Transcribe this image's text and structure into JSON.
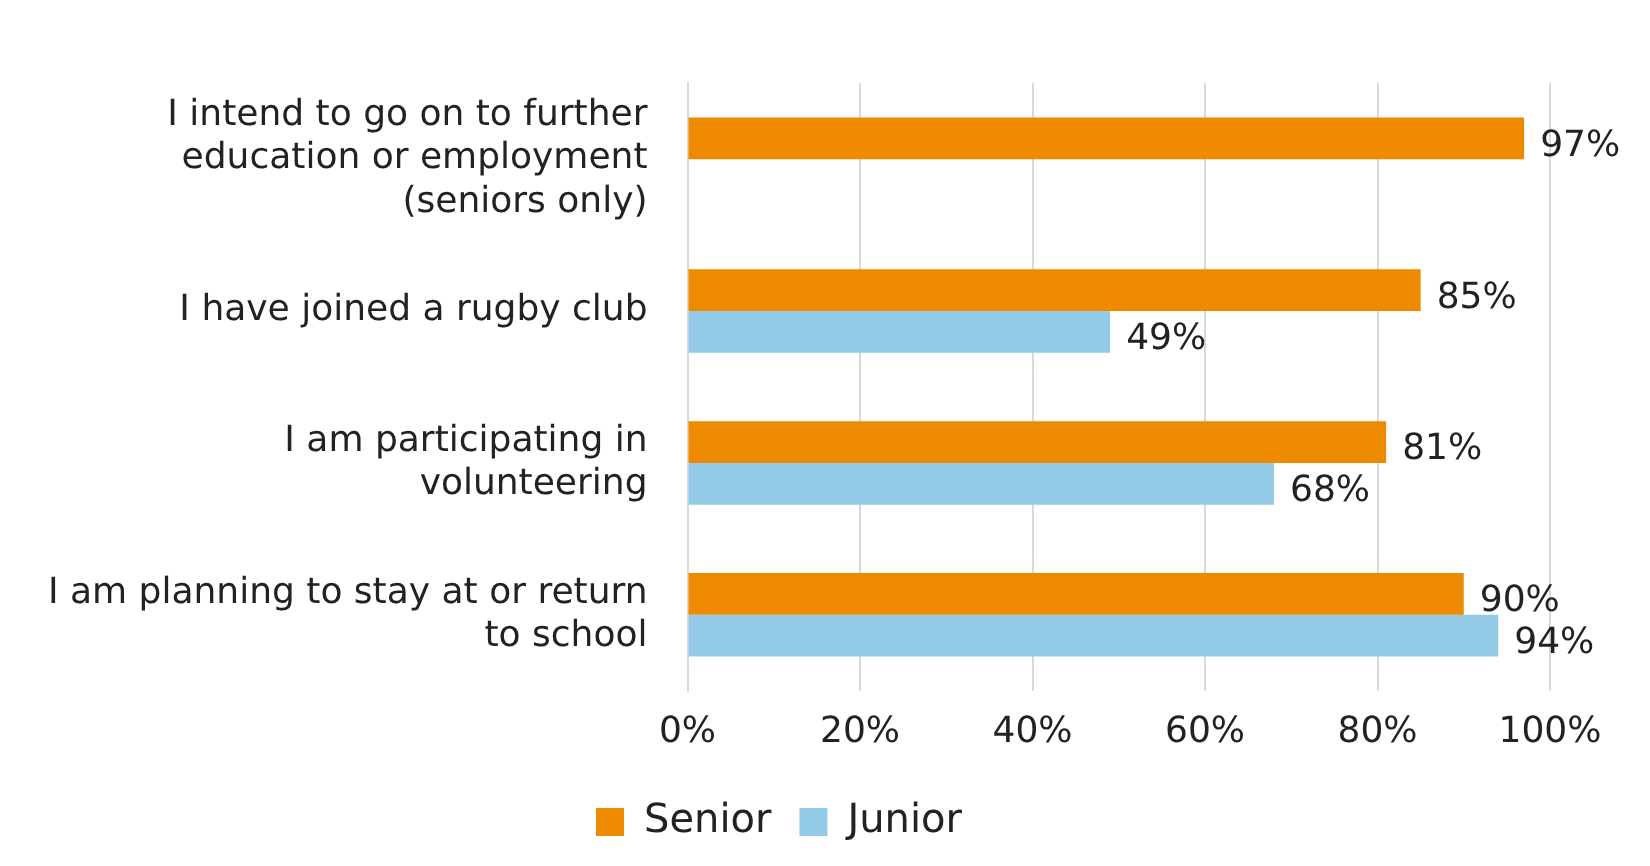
{
  "chart_data": {
    "type": "bar",
    "orientation": "horizontal",
    "categories": [
      "I intend to go on to further education or employment (seniors only)",
      "I have joined a rugby club",
      "I am participating in volunteering",
      "I am planning to stay at or return to school"
    ],
    "series": [
      {
        "name": "Senior",
        "color": "#ee8a00",
        "values": [
          97,
          85,
          81,
          90
        ],
        "value_labels": [
          "97%",
          "85%",
          "81%",
          "90%"
        ]
      },
      {
        "name": "Junior",
        "color": "#93cae8",
        "values": [
          null,
          49,
          68,
          94
        ],
        "value_labels": [
          null,
          "49%",
          "68%",
          "94%"
        ]
      }
    ],
    "xlim": [
      0,
      100
    ],
    "xticks": [
      {
        "value": 0,
        "label": "0%"
      },
      {
        "value": 20,
        "label": "20%"
      },
      {
        "value": 40,
        "label": "40%"
      },
      {
        "value": 60,
        "label": "60%"
      },
      {
        "value": 80,
        "label": "80%"
      },
      {
        "value": 100,
        "label": "100%"
      }
    ],
    "grid": "x",
    "legend": "bottom"
  }
}
